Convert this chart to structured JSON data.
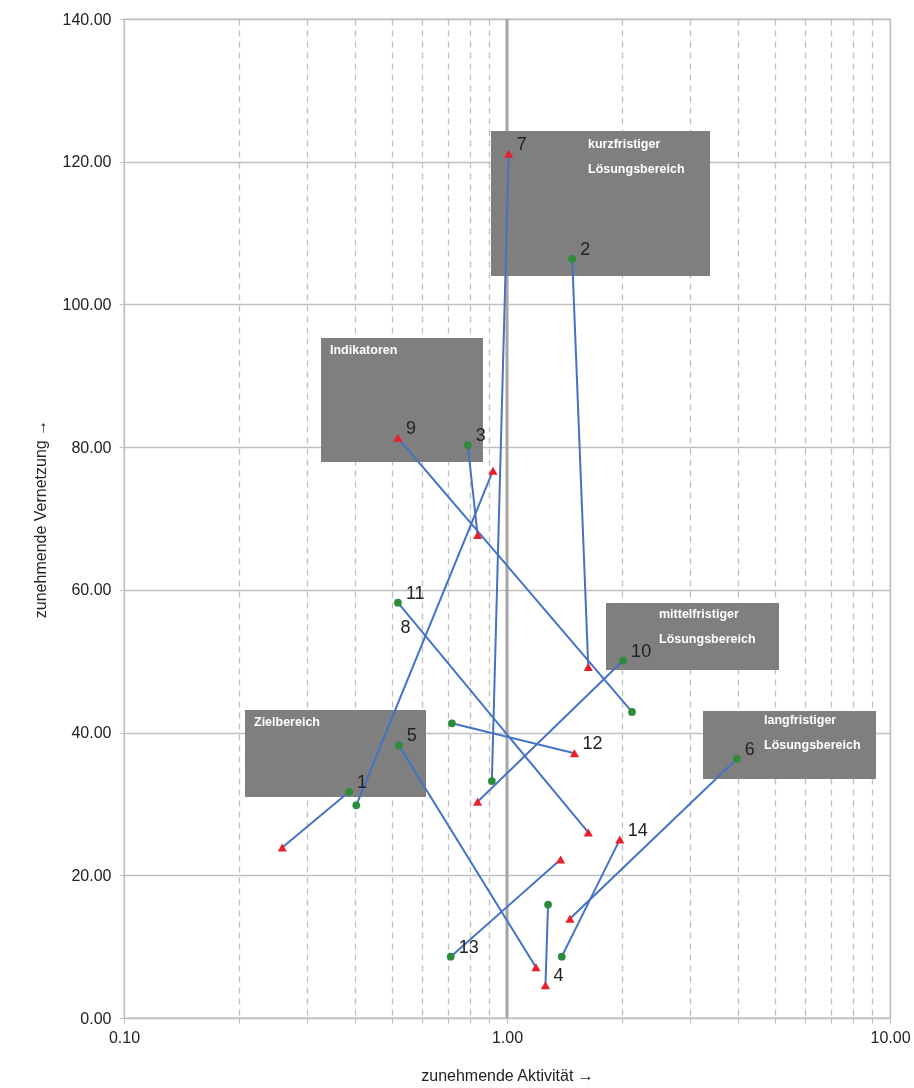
{
  "chart_data": {
    "type": "scatter",
    "xlabel": "zunehmende Aktivität →",
    "ylabel": "zunehmende Vernetzung →",
    "log": "x",
    "xlim": [
      0.1,
      10
    ],
    "ylim": [
      0,
      140
    ],
    "xticks": [
      {
        "value": 0.1,
        "label": "0.10"
      },
      {
        "value": 0.2,
        "label": null
      },
      {
        "value": 0.3,
        "label": null
      },
      {
        "value": 0.4,
        "label": null
      },
      {
        "value": 0.5,
        "label": null
      },
      {
        "value": 0.6,
        "label": null
      },
      {
        "value": 0.7,
        "label": null
      },
      {
        "value": 0.8,
        "label": null
      },
      {
        "value": 0.9,
        "label": null
      },
      {
        "value": 1,
        "label": "1.00"
      },
      {
        "value": 2,
        "label": null
      },
      {
        "value": 3,
        "label": null
      },
      {
        "value": 4,
        "label": null
      },
      {
        "value": 5,
        "label": null
      },
      {
        "value": 6,
        "label": null
      },
      {
        "value": 7,
        "label": null
      },
      {
        "value": 8,
        "label": null
      },
      {
        "value": 9,
        "label": null
      },
      {
        "value": 10,
        "label": "10.00"
      }
    ],
    "yticks": [
      {
        "value": 0,
        "label": "0.00"
      },
      {
        "value": 20,
        "label": "20.00"
      },
      {
        "value": 40,
        "label": "40.00"
      },
      {
        "value": 60,
        "label": "60.00"
      },
      {
        "value": 80,
        "label": "80.00"
      },
      {
        "value": 100,
        "label": "100.00"
      },
      {
        "value": 120,
        "label": "120.00"
      },
      {
        "value": 140,
        "label": "140.00"
      }
    ],
    "grid": true,
    "ref_lines": [
      {
        "axis": "x",
        "value": 1,
        "color": "#a6a6a6"
      }
    ],
    "annotations": [
      "kurzfristiger\nLösungsbereich",
      "Indikatoren",
      "Zielbereich",
      "mittelfristiger\nLösungsbereich",
      "langfristiger\nLösungsbereich",
      {
        "text": "1",
        "x": 0.387,
        "y": 31.7
      },
      {
        "text": "2",
        "x": 1.48,
        "y": 106.4
      },
      {
        "text": "3",
        "x": 0.79,
        "y": 80.3
      },
      {
        "text": "4",
        "x": 1.26,
        "y": 4.6
      },
      {
        "text": "5",
        "x": 0.522,
        "y": 38.2
      },
      {
        "text": "6",
        "x": 3.98,
        "y": 36.3
      },
      {
        "text": "7",
        "x": 1.01,
        "y": 121.1
      },
      {
        "text": "9",
        "x": 0.519,
        "y": 81.3
      },
      {
        "text": "10",
        "x": 2.01,
        "y": 50.1
      },
      {
        "text": "11",
        "x": 0.519,
        "y": 58.2
      },
      {
        "text": "12",
        "x": 1.5,
        "y": 37.1
      },
      {
        "text": "13",
        "x": 0.713,
        "y": 8.6
      },
      {
        "text": "14",
        "x": 1.97,
        "y": 25.0
      }
    ],
    "series": [
      {
        "type": "line",
        "color": "#4472c4",
        "marker": "none",
        "x": [
          0.387,
          0.259
        ],
        "values": [
          31.7,
          23.9
        ]
      },
      {
        "type": "line",
        "color": "#4472c4",
        "marker": "none",
        "x": [
          1.48,
          1.63
        ],
        "values": [
          106.4,
          49.2
        ]
      },
      {
        "type": "line",
        "color": "#4472c4",
        "marker": "none",
        "x": [
          0.79,
          0.838
        ],
        "values": [
          80.3,
          67.7
        ]
      },
      {
        "type": "line",
        "color": "#4472c4",
        "marker": "none",
        "x": [
          1.28,
          1.26
        ],
        "values": [
          15.9,
          4.6
        ]
      },
      {
        "type": "line",
        "color": "#4472c4",
        "marker": "none",
        "x": [
          0.522,
          1.19
        ],
        "values": [
          38.2,
          7.1
        ]
      },
      {
        "type": "line",
        "color": "#4472c4",
        "marker": "none",
        "x": [
          3.98,
          1.46
        ],
        "values": [
          36.3,
          13.9
        ]
      },
      {
        "type": "line",
        "color": "#4472c4",
        "marker": "none",
        "x": [
          0.913,
          1.01
        ],
        "values": [
          33.2,
          121.1
        ]
      },
      {
        "type": "line",
        "name": "8",
        "color": "#4472c4",
        "marker": "none",
        "x": [
          0.404,
          0.919
        ],
        "values": [
          29.8,
          76.7
        ]
      },
      {
        "type": "line",
        "color": "#4472c4",
        "marker": "none",
        "x": [
          2.12,
          0.519
        ],
        "values": [
          42.9,
          81.3
        ]
      },
      {
        "type": "line",
        "color": "#4472c4",
        "marker": "none",
        "x": [
          2.01,
          0.838
        ],
        "values": [
          50.1,
          30.3
        ]
      },
      {
        "type": "line",
        "color": "#4472c4",
        "marker": "none",
        "x": [
          0.519,
          1.63
        ],
        "values": [
          58.2,
          26.0
        ]
      },
      {
        "type": "line",
        "color": "#4472c4",
        "marker": "none",
        "x": [
          0.718,
          1.5
        ],
        "values": [
          41.3,
          37.1
        ]
      },
      {
        "type": "line",
        "color": "#4472c4",
        "marker": "none",
        "x": [
          0.713,
          1.38
        ],
        "values": [
          8.6,
          22.2
        ]
      },
      {
        "type": "line",
        "color": "#4472c4",
        "marker": "none",
        "x": [
          1.39,
          1.97
        ],
        "values": [
          8.6,
          25.0
        ]
      },
      {
        "color": "#2e8b3a",
        "marker": "circle",
        "x": [
          0.387,
          1.48,
          0.79,
          1.28,
          0.522,
          3.98,
          0.913,
          0.404,
          2.12,
          2.01,
          0.519,
          0.718,
          0.713,
          1.39
        ],
        "values": [
          31.7,
          106.4,
          80.3,
          15.9,
          38.2,
          36.3,
          33.2,
          29.8,
          42.9,
          50.1,
          58.2,
          41.3,
          8.6,
          8.6
        ]
      },
      {
        "color": "#e8202a",
        "marker": "triangle",
        "x": [
          0.259,
          1.63,
          0.838,
          1.26,
          1.19,
          1.46,
          1.01,
          0.919,
          0.519,
          0.838,
          1.63,
          1.5,
          1.38,
          1.97
        ],
        "values": [
          23.9,
          49.2,
          67.7,
          4.6,
          7.1,
          13.9,
          121.1,
          76.7,
          81.3,
          30.3,
          26.0,
          37.1,
          22.2,
          25.0
        ]
      }
    ]
  }
}
